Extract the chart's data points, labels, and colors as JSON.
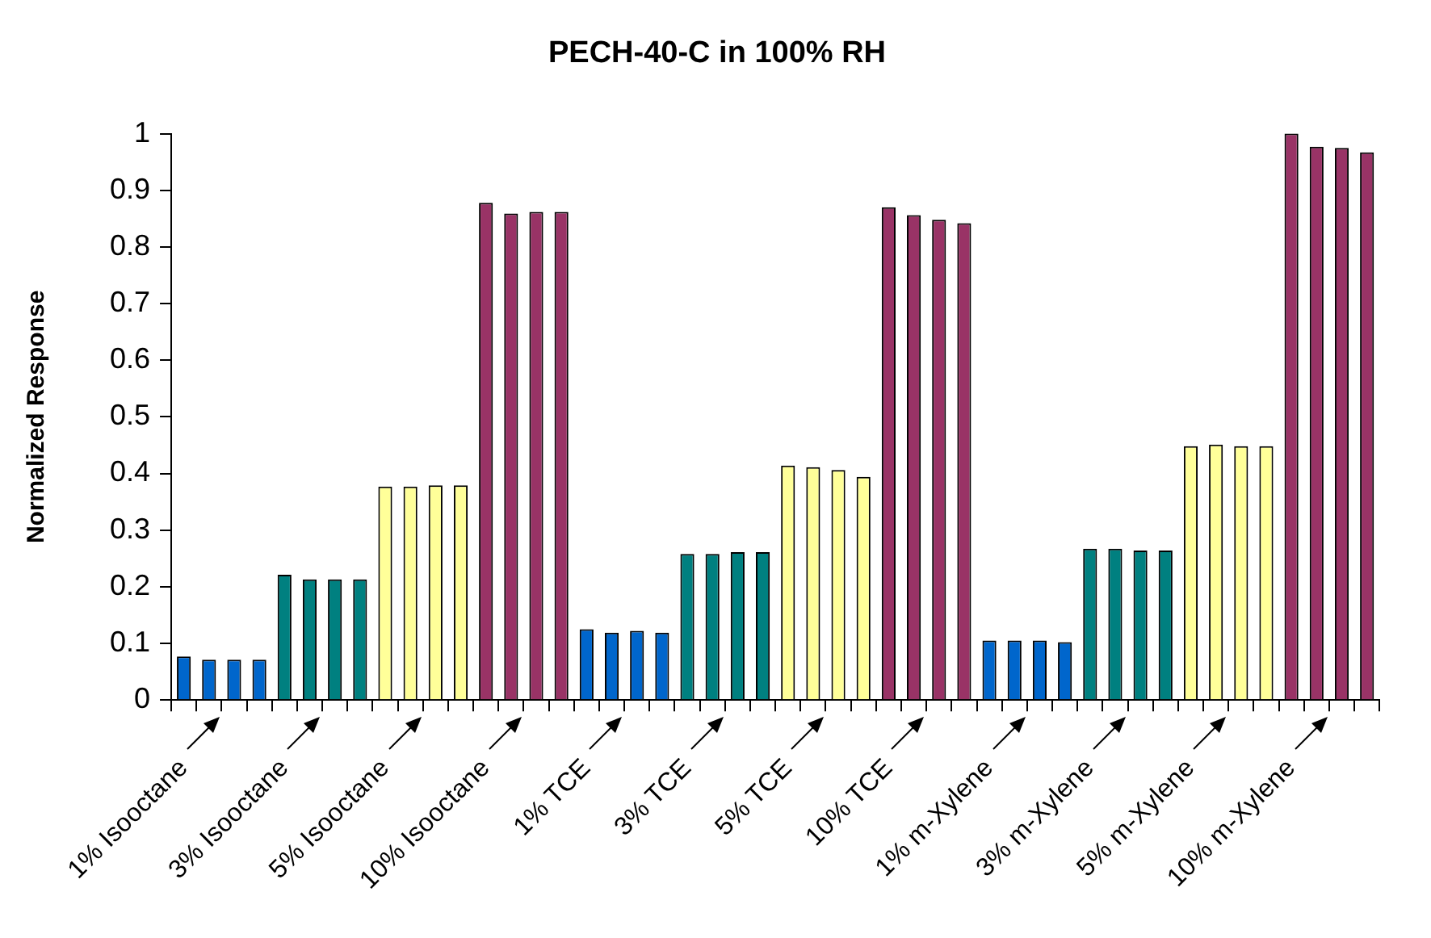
{
  "chart_data": {
    "type": "bar",
    "title": "PECH-40-C in 100% RH",
    "ylabel": "Normalized Response",
    "categories": [
      "1% Isooctane",
      null,
      null,
      null,
      "3% Isooctane",
      null,
      null,
      null,
      "5% Isooctane",
      null,
      null,
      null,
      "10% Isooctane",
      null,
      null,
      null,
      "1% TCE",
      null,
      null,
      null,
      "3% TCE",
      null,
      null,
      null,
      "5% TCE",
      null,
      null,
      null,
      "10% TCE",
      null,
      null,
      null,
      "1% m-Xylene",
      null,
      null,
      null,
      "3% m-Xylene",
      null,
      null,
      null,
      "5% m-Xylene",
      null,
      null,
      null,
      "10% m-Xylene",
      null,
      null,
      null
    ],
    "values": [
      0.077,
      0.071,
      0.071,
      0.071,
      0.221,
      0.213,
      0.213,
      0.213,
      0.377,
      0.377,
      0.379,
      0.379,
      0.878,
      0.859,
      0.862,
      0.862,
      0.125,
      0.119,
      0.122,
      0.119,
      0.258,
      0.258,
      0.261,
      0.261,
      0.414,
      0.411,
      0.406,
      0.394,
      0.87,
      0.856,
      0.848,
      0.842,
      0.105,
      0.105,
      0.105,
      0.102,
      0.267,
      0.267,
      0.264,
      0.264,
      0.448,
      0.451,
      0.448,
      0.448,
      1.0,
      0.977,
      0.975,
      0.967
    ],
    "colors": [
      "#0066cc",
      "#0066cc",
      "#0066cc",
      "#0066cc",
      "#008080",
      "#008080",
      "#008080",
      "#008080",
      "#ffff99",
      "#ffff99",
      "#ffff99",
      "#ffff99",
      "#993366",
      "#993366",
      "#993366",
      "#993366",
      "#0066cc",
      "#0066cc",
      "#0066cc",
      "#0066cc",
      "#008080",
      "#008080",
      "#008080",
      "#008080",
      "#ffff99",
      "#ffff99",
      "#ffff99",
      "#ffff99",
      "#993366",
      "#993366",
      "#993366",
      "#993366",
      "#0066cc",
      "#0066cc",
      "#0066cc",
      "#0066cc",
      "#008080",
      "#008080",
      "#008080",
      "#008080",
      "#ffff99",
      "#ffff99",
      "#ffff99",
      "#ffff99",
      "#993366",
      "#993366",
      "#993366",
      "#993366"
    ],
    "ylim": [
      0,
      1
    ],
    "yticks": [
      0,
      0.1,
      0.2,
      0.3,
      0.4,
      0.5,
      0.6,
      0.7,
      0.8,
      0.9,
      1
    ],
    "grid": false,
    "legend": false
  }
}
